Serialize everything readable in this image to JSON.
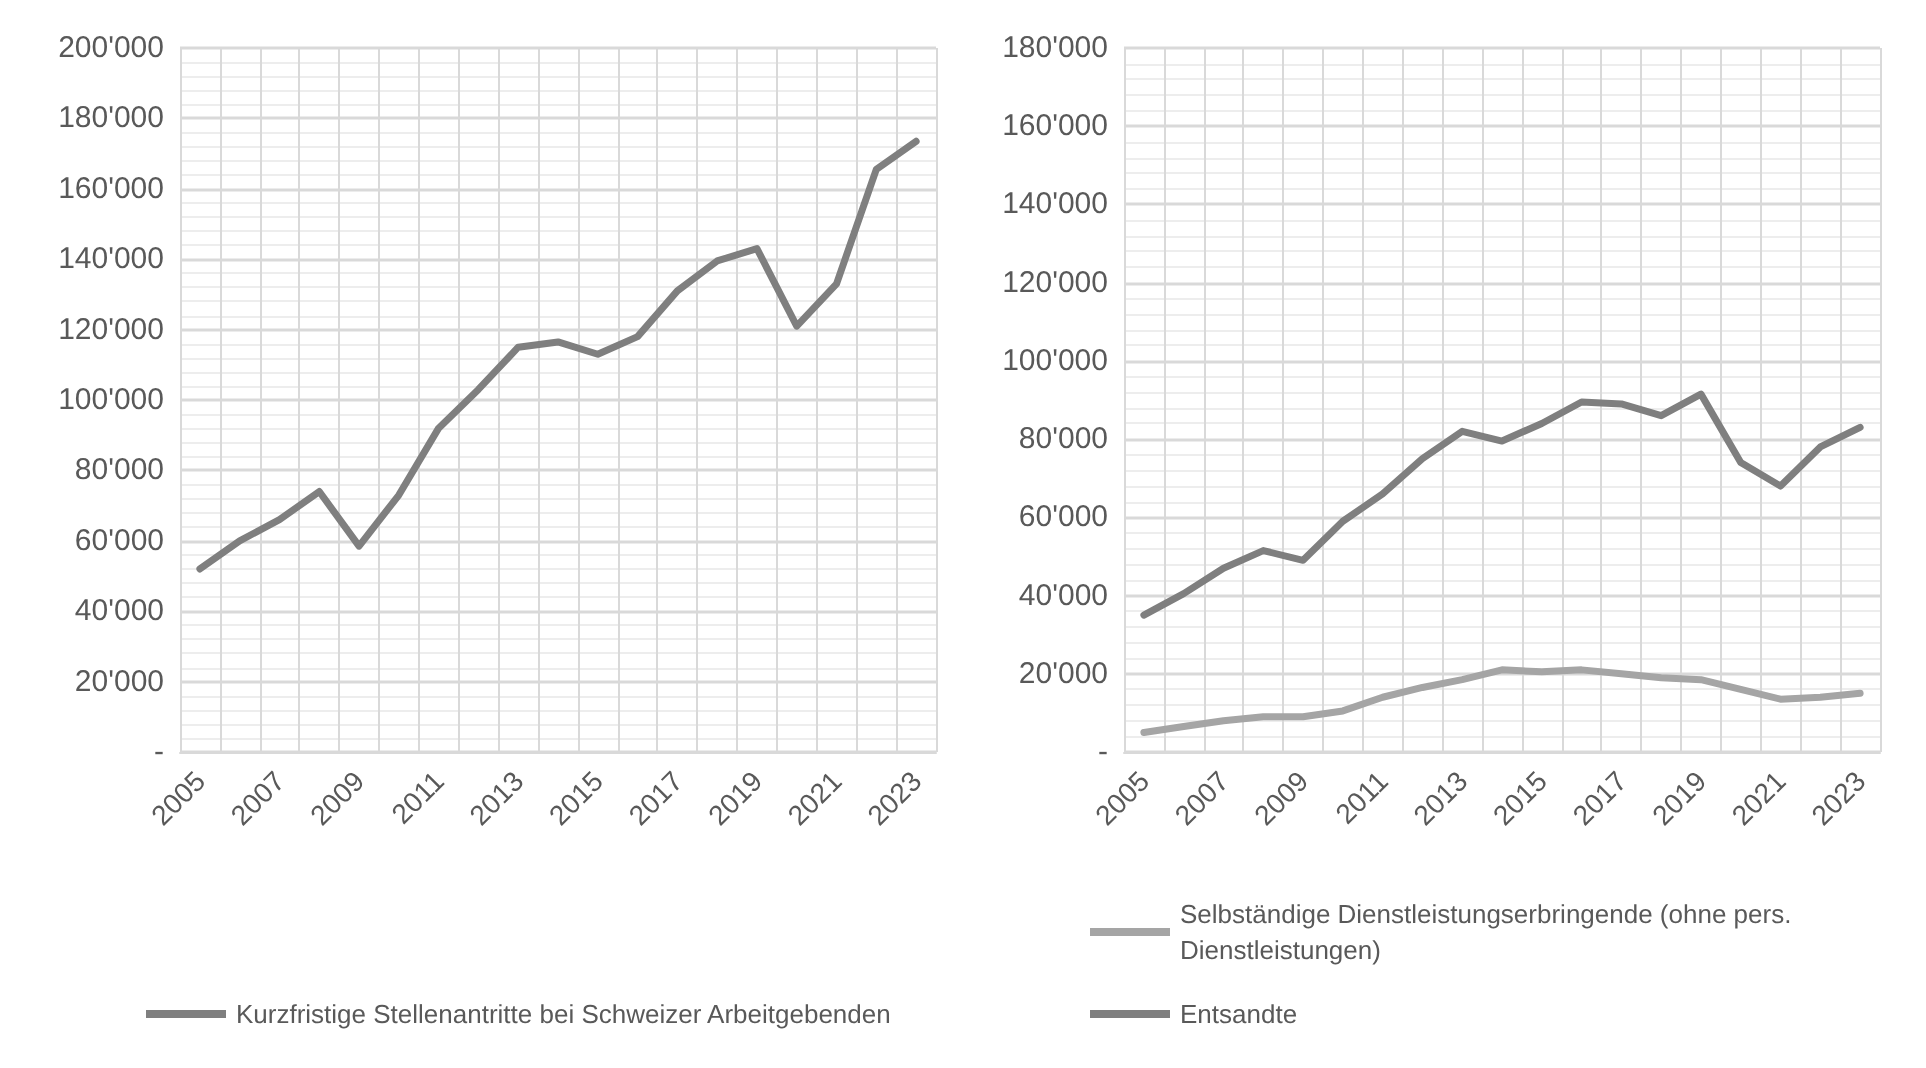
{
  "chart_data": [
    {
      "type": "line",
      "categories": [
        "2005",
        null,
        "2007",
        null,
        "2009",
        null,
        "2011",
        null,
        "2013",
        null,
        "2015",
        null,
        "2017",
        null,
        "2019",
        null,
        "2021",
        null,
        "2023"
      ],
      "series": [
        {
          "name": "Kurzfristige Stellenantritte bei Schweizer Arbeitgebenden",
          "color": "#7f7f7f",
          "values": [
            52000,
            60000,
            66000,
            74000,
            58500,
            73000,
            92000,
            103000,
            115000,
            116500,
            113000,
            118000,
            131000,
            139500,
            143000,
            121000,
            133000,
            165500,
            173500
          ]
        }
      ],
      "ylim": [
        0,
        200000
      ],
      "yticks": [
        {
          "value": 0,
          "label": "-"
        },
        {
          "value": 20000,
          "label": "20'000"
        },
        {
          "value": 40000,
          "label": "40'000"
        },
        {
          "value": 60000,
          "label": "60'000"
        },
        {
          "value": 80000,
          "label": "80'000"
        },
        {
          "value": 100000,
          "label": "100'000"
        },
        {
          "value": 120000,
          "label": "120'000"
        },
        {
          "value": 140000,
          "label": "140'000"
        },
        {
          "value": 160000,
          "label": "160'000"
        },
        {
          "value": 180000,
          "label": "180'000"
        },
        {
          "value": 200000,
          "label": "200'000"
        }
      ],
      "grid": true,
      "legend": "bottom",
      "marker": "none"
    },
    {
      "type": "line",
      "categories": [
        "2005",
        null,
        "2007",
        null,
        "2009",
        null,
        "2011",
        null,
        "2013",
        null,
        "2015",
        null,
        "2017",
        null,
        "2019",
        null,
        "2021",
        null,
        "2023"
      ],
      "series": [
        {
          "name": "Selbständige Dienstleistungserbringende (ohne pers. Dienstleistungen)",
          "color": "#a5a5a5",
          "values": [
            5000,
            6500,
            8000,
            9000,
            9000,
            10500,
            14000,
            16500,
            18500,
            21000,
            20500,
            21000,
            20000,
            19000,
            18500,
            16000,
            13500,
            14000,
            15000
          ]
        },
        {
          "name": "Entsandte",
          "color": "#7f7f7f",
          "values": [
            35000,
            40500,
            47000,
            51500,
            49000,
            59000,
            66000,
            75000,
            82000,
            79500,
            84000,
            89500,
            89000,
            86000,
            91500,
            74000,
            68000,
            78000,
            83000
          ]
        }
      ],
      "ylim": [
        0,
        180000
      ],
      "yticks": [
        {
          "value": 0,
          "label": "-"
        },
        {
          "value": 20000,
          "label": "20'000"
        },
        {
          "value": 40000,
          "label": "40'000"
        },
        {
          "value": 60000,
          "label": "60'000"
        },
        {
          "value": 80000,
          "label": "80'000"
        },
        {
          "value": 100000,
          "label": "100'000"
        },
        {
          "value": 120000,
          "label": "120'000"
        },
        {
          "value": 140000,
          "label": "140'000"
        },
        {
          "value": 160000,
          "label": "160'000"
        },
        {
          "value": 180000,
          "label": "180'000"
        }
      ],
      "grid": true,
      "legend": "bottom",
      "marker": "none"
    }
  ]
}
